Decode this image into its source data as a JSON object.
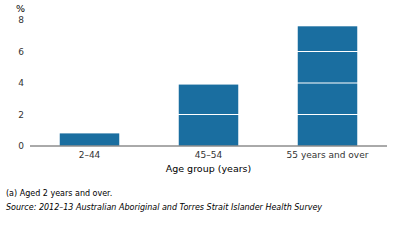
{
  "chart_data": {
    "type": "bar",
    "categories": [
      "2–44",
      "45–54",
      "55 years and over"
    ],
    "values": [
      0.8,
      3.9,
      7.6
    ],
    "color": "#1a6ea0",
    "ylim": [
      0,
      8
    ],
    "yticks": [
      0,
      2,
      4,
      6,
      8
    ],
    "grid": true,
    "x_label": "Age group (years)",
    "y_label": "%",
    "annotations": [
      "(a) Aged 2 years and over.",
      "Source: 2012–13 Australian Aboriginal and Torres Strait Islander Health Survey"
    ]
  }
}
